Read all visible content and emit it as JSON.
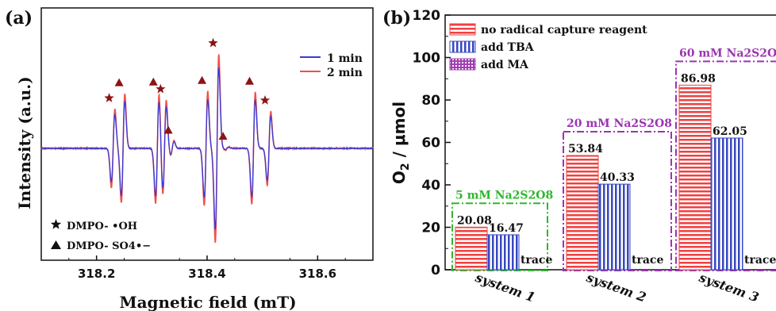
{
  "panel_a": {
    "label": "(a)",
    "chart_data": {
      "type": "line",
      "xlabel": "Magnetic field (mT)",
      "ylabel": "Intensity (a.u.)",
      "xlim": [
        318.1,
        318.7
      ],
      "xticks": [
        318.2,
        318.4,
        318.6
      ],
      "series": [
        {
          "name": "1 min",
          "color": "#3b3bd6"
        },
        {
          "name": "2 min",
          "color": "#f05050"
        }
      ],
      "peaks": [
        {
          "x": 318.23,
          "h": 0.52,
          "marker": "star"
        },
        {
          "x": 318.248,
          "h": 0.73,
          "marker": "triangle"
        },
        {
          "x": 318.31,
          "h": 0.74,
          "marker": "triangle"
        },
        {
          "x": 318.323,
          "h": 0.64,
          "marker": "star"
        },
        {
          "x": 318.337,
          "h": 0.1,
          "marker": "triangle"
        },
        {
          "x": 318.398,
          "h": 0.76,
          "marker": "triangle"
        },
        {
          "x": 318.418,
          "h": 1.25,
          "marker": "star"
        },
        {
          "x": 318.436,
          "h": 0.02,
          "marker": "triangle"
        },
        {
          "x": 318.484,
          "h": 0.75,
          "marker": "triangle"
        },
        {
          "x": 318.512,
          "h": 0.49,
          "marker": "star"
        }
      ],
      "markers_legend": [
        {
          "symbol": "star",
          "label": "DMPO- •OH"
        },
        {
          "symbol": "triangle",
          "label": "DMPO- SO4•−"
        }
      ]
    }
  },
  "panel_b": {
    "label": "(b)",
    "chart_data": {
      "type": "bar",
      "ylabel": "O2 / μmol",
      "ylim": [
        0,
        120
      ],
      "yticks": [
        0,
        20,
        40,
        60,
        80,
        100,
        120
      ],
      "categories": [
        "system 1",
        "system 2",
        "system 3"
      ],
      "series": [
        {
          "name": "no radical capture reagent",
          "color": "#f04040",
          "values": [
            20.08,
            53.84,
            86.98
          ],
          "labels": [
            "20.08",
            "53.84",
            "86.98"
          ]
        },
        {
          "name": "add TBA",
          "color": "#3848c0",
          "values": [
            16.47,
            40.33,
            62.05
          ],
          "labels": [
            "16.47",
            "40.33",
            "62.05"
          ]
        },
        {
          "name": "add MA",
          "color": "#a040b0",
          "values": [
            0,
            0,
            0
          ],
          "labels": [
            "trace",
            "trace",
            "trace"
          ]
        }
      ],
      "group_annotations": [
        "5 mM Na2S2O8",
        "20 mM Na2S2O8",
        "60 mM Na2S2O8"
      ],
      "annotation_colors": [
        "#2db82d",
        "#9b35b0",
        "#9b35b0"
      ]
    }
  }
}
